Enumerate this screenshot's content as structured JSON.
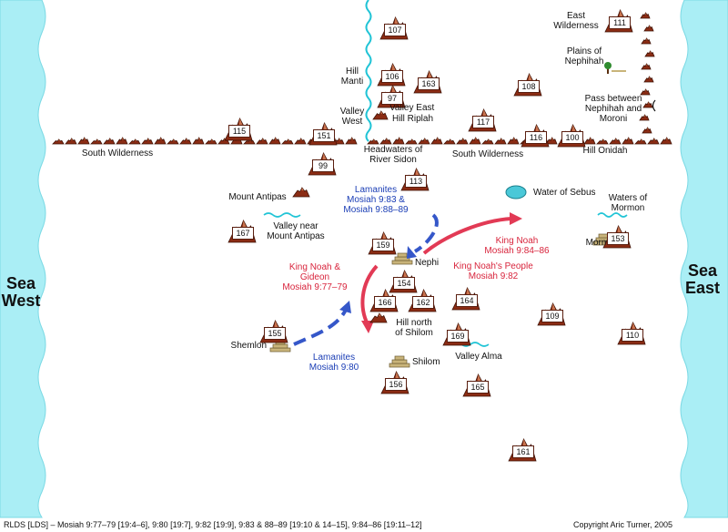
{
  "seas": {
    "west": "Sea\nWest",
    "east": "Sea\nEast"
  },
  "hill_numbers": [
    "107",
    "111",
    "106",
    "163",
    "108",
    "97",
    "117",
    "115",
    "151",
    "116",
    "100",
    "99",
    "113",
    "167",
    "159",
    "154",
    "166",
    "162",
    "164",
    "109",
    "153",
    "155",
    "169",
    "110",
    "156",
    "165",
    "161"
  ],
  "places": {
    "east_wilderness": "East\nWilderness",
    "plains_of_nephihah": "Plains of\nNephihah",
    "hill_manti": "Hill\nManti",
    "valley_east": "Valley East",
    "hill_riplah": "Hill Riplah",
    "valley_west": "Valley\nWest",
    "pass": "Pass between\nNephihah and\nMoroni",
    "south_wilderness_west": "South Wilderness",
    "south_wilderness_east": "South Wilderness",
    "headwaters": "Headwaters of\nRiver Sidon",
    "hill_onidah": "Hill Onidah",
    "water_of_sebus": "Water of Sebus",
    "mount_antipas": "Mount Antipas",
    "valley_near_mount_antipas": "Valley near\nMount Antipas",
    "waters_of_mormon": "Waters of\nMormon",
    "mormon": "Mormon",
    "nephi": "Nephi",
    "hill_north_of_shilom": "Hill north\nof Shilom",
    "shemlon": "Shemlon",
    "shilom": "Shilom",
    "valley_alma": "Valley Alma"
  },
  "events": {
    "lamanites_83": "Lamanites\nMosiah 9:83 &\nMosiah 9:88–89",
    "king_noah_84": "King Noah\nMosiah 9:84–86",
    "king_noahs_people": "King Noah's People\nMosiah 9:82",
    "king_noah_gideon": "King Noah &\nGideon\nMosiah 9:77–79",
    "lamanites_80": "Lamanites\nMosiah 9:80"
  },
  "colors": {
    "sea": "#aaeef5",
    "river": "#21c4d6",
    "hill": "#8b2c14",
    "route_red": "#e23a55",
    "route_blue": "#3557c9",
    "city": "#c9b47a"
  },
  "footer": {
    "reference": "RLDS [LDS] – Mosiah 9:77–79 [19:4–6], 9:80 [19:7], 9:82 [19:9], 9:83 & 88–89 [19:10 & 14–15], 9:84–86 [19:11–12]",
    "copyright": "Copyright Aric Turner, 2005"
  }
}
